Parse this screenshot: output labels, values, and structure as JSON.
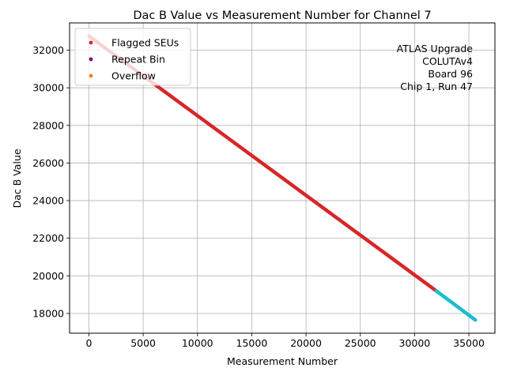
{
  "chart_data": {
    "type": "scatter",
    "title": "Dac B Value vs Measurement Number for Channel 7",
    "xlabel": "Measurement Number",
    "ylabel": "Dac B Value",
    "xlim": [
      -1780,
      37400
    ],
    "ylim": [
      16950,
      33450
    ],
    "grid": true,
    "x_ticks": [
      0,
      5000,
      10000,
      15000,
      20000,
      25000,
      30000,
      35000
    ],
    "x_tick_labels": [
      "0",
      "5000",
      "10000",
      "15000",
      "20000",
      "25000",
      "30000",
      "35000"
    ],
    "y_ticks": [
      18000,
      20000,
      22000,
      24000,
      26000,
      28000,
      30000,
      32000
    ],
    "y_tick_labels": [
      "18000",
      "20000",
      "22000",
      "24000",
      "26000",
      "28000",
      "30000",
      "32000"
    ],
    "legend_position": "upper-left",
    "legend": [
      {
        "label": "Flagged SEUs",
        "color": "#d62728"
      },
      {
        "label": "Repeat Bin",
        "color": "#800080"
      },
      {
        "label": "Overflow",
        "color": "#ff7f0e"
      }
    ],
    "annotation": [
      "ATLAS Upgrade",
      "COLUTAv4",
      "Board 96",
      "Chip 1, Run 47"
    ],
    "series": [
      {
        "name": "Flagged SEUs (red segment)",
        "color": "#d62728",
        "x": [
          0,
          32000
        ],
        "y": [
          32750,
          19200
        ]
      },
      {
        "name": "cyan segment",
        "color": "#17becf",
        "x": [
          32000,
          35600
        ],
        "y": [
          19200,
          17650
        ]
      }
    ]
  }
}
